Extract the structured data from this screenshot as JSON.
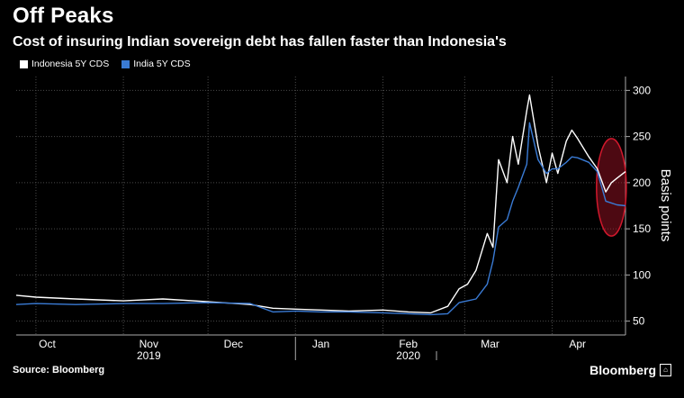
{
  "header": {
    "title": "Off Peaks",
    "subtitle": "Cost of insuring Indian sovereign debt has fallen faster than Indonesia's"
  },
  "footer": {
    "source": "Source: Bloomberg",
    "brand": "Bloomberg",
    "brand_icon": "terminal-icon"
  },
  "colors": {
    "background": "#000000",
    "indonesia": "#ffffff",
    "india": "#3a7bd5",
    "highlight": "#c0152a",
    "grid": "#555555"
  },
  "chart_data": {
    "type": "line",
    "ylabel": "Basis points",
    "ylim": [
      35,
      315
    ],
    "yticks": [
      50,
      100,
      150,
      200,
      250,
      300
    ],
    "grid": true,
    "legend_position": "top-left",
    "month_labels": [
      "Oct",
      "Nov",
      "Dec",
      "Jan",
      "Feb",
      "Mar",
      "Apr"
    ],
    "year_labels": [
      "2019",
      "2020"
    ],
    "x_range": [
      "2019-09-24",
      "2020-04-27"
    ],
    "series": [
      {
        "name": "Indonesia 5Y CDS",
        "color": "#ffffff",
        "points": [
          [
            "2019-09-24",
            78
          ],
          [
            "2019-10-01",
            76
          ],
          [
            "2019-10-15",
            74
          ],
          [
            "2019-11-01",
            72
          ],
          [
            "2019-11-15",
            74
          ],
          [
            "2019-12-01",
            71
          ],
          [
            "2019-12-16",
            68
          ],
          [
            "2019-12-24",
            64
          ],
          [
            "2020-01-01",
            63
          ],
          [
            "2020-01-10",
            62
          ],
          [
            "2020-01-20",
            61
          ],
          [
            "2020-02-01",
            62
          ],
          [
            "2020-02-10",
            60
          ],
          [
            "2020-02-18",
            59
          ],
          [
            "2020-02-24",
            66
          ],
          [
            "2020-02-28",
            85
          ],
          [
            "2020-03-02",
            90
          ],
          [
            "2020-03-05",
            105
          ],
          [
            "2020-03-09",
            145
          ],
          [
            "2020-03-11",
            130
          ],
          [
            "2020-03-13",
            225
          ],
          [
            "2020-03-16",
            200
          ],
          [
            "2020-03-18",
            250
          ],
          [
            "2020-03-20",
            220
          ],
          [
            "2020-03-23",
            278
          ],
          [
            "2020-03-24",
            295
          ],
          [
            "2020-03-27",
            240
          ],
          [
            "2020-03-30",
            200
          ],
          [
            "2020-04-01",
            232
          ],
          [
            "2020-04-03",
            210
          ],
          [
            "2020-04-06",
            245
          ],
          [
            "2020-04-08",
            257
          ],
          [
            "2020-04-10",
            248
          ],
          [
            "2020-04-14",
            228
          ],
          [
            "2020-04-17",
            215
          ],
          [
            "2020-04-20",
            190
          ],
          [
            "2020-04-22",
            200
          ],
          [
            "2020-04-24",
            205
          ],
          [
            "2020-04-27",
            212
          ]
        ]
      },
      {
        "name": "India 5Y CDS",
        "color": "#3a7bd5",
        "points": [
          [
            "2019-09-24",
            68
          ],
          [
            "2019-10-01",
            69
          ],
          [
            "2019-10-15",
            68
          ],
          [
            "2019-11-01",
            69
          ],
          [
            "2019-11-15",
            69
          ],
          [
            "2019-12-01",
            70
          ],
          [
            "2019-12-16",
            69
          ],
          [
            "2019-12-24",
            60
          ],
          [
            "2020-01-01",
            61
          ],
          [
            "2020-01-10",
            60
          ],
          [
            "2020-01-20",
            60
          ],
          [
            "2020-02-01",
            59
          ],
          [
            "2020-02-10",
            58
          ],
          [
            "2020-02-18",
            57
          ],
          [
            "2020-02-24",
            58
          ],
          [
            "2020-02-28",
            70
          ],
          [
            "2020-03-02",
            72
          ],
          [
            "2020-03-05",
            74
          ],
          [
            "2020-03-09",
            90
          ],
          [
            "2020-03-11",
            115
          ],
          [
            "2020-03-13",
            152
          ],
          [
            "2020-03-16",
            160
          ],
          [
            "2020-03-18",
            180
          ],
          [
            "2020-03-20",
            195
          ],
          [
            "2020-03-23",
            220
          ],
          [
            "2020-03-24",
            265
          ],
          [
            "2020-03-27",
            225
          ],
          [
            "2020-03-30",
            210
          ],
          [
            "2020-04-01",
            215
          ],
          [
            "2020-04-03",
            215
          ],
          [
            "2020-04-06",
            222
          ],
          [
            "2020-04-08",
            228
          ],
          [
            "2020-04-10",
            227
          ],
          [
            "2020-04-14",
            222
          ],
          [
            "2020-04-17",
            212
          ],
          [
            "2020-04-20",
            180
          ],
          [
            "2020-04-22",
            178
          ],
          [
            "2020-04-24",
            176
          ],
          [
            "2020-04-27",
            175
          ]
        ]
      }
    ],
    "highlight_window": [
      "2020-04-18",
      "2020-04-26"
    ],
    "highlight_yrange": [
      150,
      240
    ]
  }
}
